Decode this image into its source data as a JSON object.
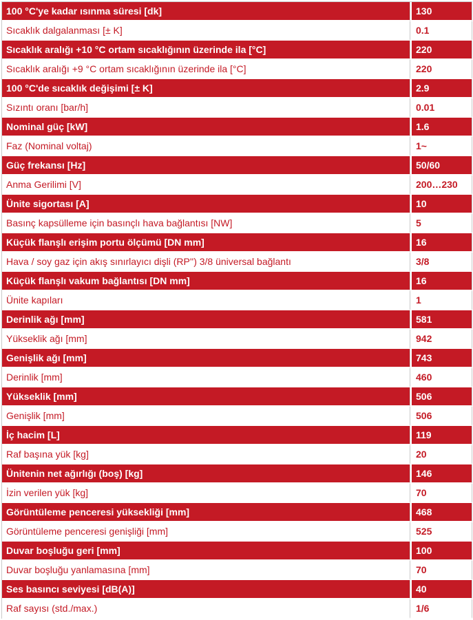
{
  "specs": [
    {
      "label": "100 °C'ye kadar ısınma süresi [dk]",
      "value": "130"
    },
    {
      "label": "Sıcaklık dalgalanması [± K]",
      "value": "0.1"
    },
    {
      "label": "Sıcaklık aralığı +10 °C ortam sıcaklığının üzerinde ila [°C]",
      "value": "220"
    },
    {
      "label": "Sıcaklık aralığı +9 °C ortam sıcaklığının üzerinde ila [°C]",
      "value": "220"
    },
    {
      "label": "100 °C'de sıcaklık değişimi [± K]",
      "value": "2.9"
    },
    {
      "label": "Sızıntı oranı [bar/h]",
      "value": "0.01"
    },
    {
      "label": "Nominal güç [kW]",
      "value": "1.6"
    },
    {
      "label": "Faz (Nominal voltaj)",
      "value": "1~"
    },
    {
      "label": "Güç frekansı [Hz]",
      "value": "50/60"
    },
    {
      "label": "Anma Gerilimi [V]",
      "value": "200…230"
    },
    {
      "label": "Ünite sigortası [A]",
      "value": "10"
    },
    {
      "label": "Basınç kapsülleme için basınçlı hava bağlantısı [NW]",
      "value": "5"
    },
    {
      "label": "Küçük flanşlı erişim portu ölçümü [DN mm]",
      "value": "16"
    },
    {
      "label": "Hava / soy gaz için akış sınırlayıcı dişli (RP'') 3/8 üniversal bağlantı",
      "value": "3/8"
    },
    {
      "label": "Küçük flanşlı vakum bağlantısı [DN mm]",
      "value": "16"
    },
    {
      "label": "Ünite kapıları",
      "value": "1"
    },
    {
      "label": "Derinlik ağı [mm]",
      "value": "581"
    },
    {
      "label": "Yükseklik ağı [mm]",
      "value": "942"
    },
    {
      "label": "Genişlik ağı [mm]",
      "value": "743"
    },
    {
      "label": "Derinlik [mm]",
      "value": "460"
    },
    {
      "label": "Yükseklik [mm]",
      "value": "506"
    },
    {
      "label": "Genişlik [mm]",
      "value": "506"
    },
    {
      "label": "İç hacim [L]",
      "value": "119"
    },
    {
      "label": "Raf başına yük [kg]",
      "value": "20"
    },
    {
      "label": "Ünitenin net ağırlığı (boş) [kg]",
      "value": "146"
    },
    {
      "label": "İzin verilen yük [kg]",
      "value": "70"
    },
    {
      "label": "Görüntüleme penceresi yüksekliği [mm]",
      "value": "468"
    },
    {
      "label": "Görüntüleme penceresi genişliği [mm]",
      "value": "525"
    },
    {
      "label": "Duvar boşluğu geri [mm]",
      "value": "100"
    },
    {
      "label": "Duvar boşluğu yanlamasına [mm]",
      "value": "70"
    },
    {
      "label": "Ses basıncı seviyesi [dB(A)]",
      "value": "40"
    },
    {
      "label": "Raf sayısı (std./max.)",
      "value": "1/6"
    }
  ],
  "colors": {
    "row_red": "#c41a25",
    "row_white": "#ffffff"
  }
}
